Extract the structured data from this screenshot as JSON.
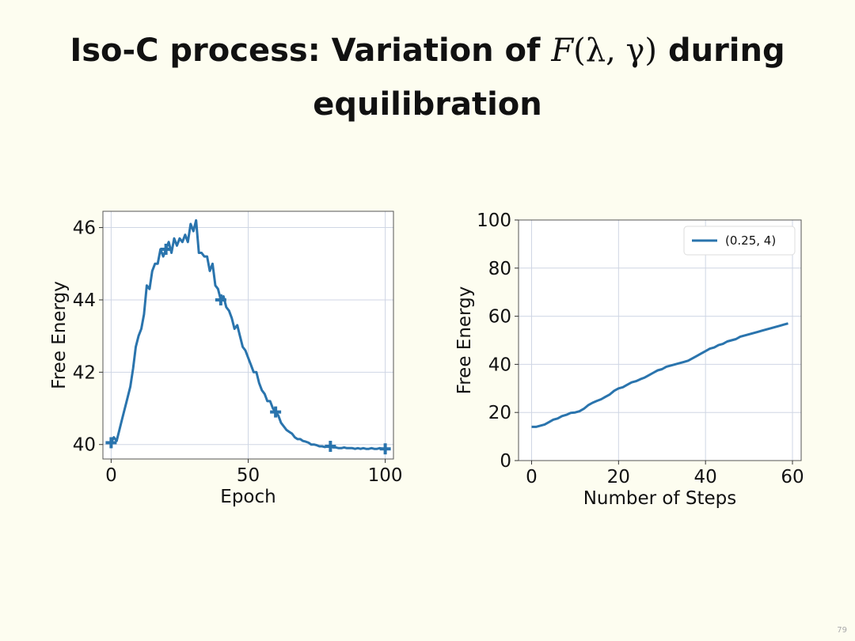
{
  "slide": {
    "title_before": "Iso-C process: Variation of ",
    "title_math_F": "F",
    "title_math_args": "(λ, γ)",
    "title_after": " during",
    "title_line2": "equilibration",
    "page_number": "79"
  },
  "colors": {
    "line": "#2a74ad",
    "grid": "#cfd6e4",
    "frame": "#555555",
    "background": "#fdfdf0"
  },
  "chart_data": [
    {
      "type": "line",
      "xlabel": "Epoch",
      "ylabel": "Free Energy",
      "xlim": [
        -3,
        103
      ],
      "ylim": [
        39.6,
        46.45
      ],
      "xticks": [
        0,
        50,
        100
      ],
      "yticks": [
        40,
        42,
        44,
        46
      ],
      "grid": true,
      "legend": null,
      "marker_x": [
        0,
        20,
        40,
        60,
        80,
        100
      ],
      "series": [
        {
          "x": [
            0,
            1,
            2,
            3,
            4,
            5,
            6,
            7,
            8,
            9,
            10,
            11,
            12,
            13,
            14,
            15,
            16,
            17,
            18,
            19,
            20,
            21,
            22,
            23,
            24,
            25,
            26,
            27,
            28,
            29,
            30,
            31,
            32,
            33,
            34,
            35,
            36,
            37,
            38,
            39,
            40,
            41,
            42,
            43,
            44,
            45,
            46,
            47,
            48,
            49,
            50,
            51,
            52,
            53,
            54,
            55,
            56,
            57,
            58,
            59,
            60,
            61,
            62,
            63,
            64,
            65,
            66,
            67,
            68,
            69,
            70,
            71,
            72,
            73,
            74,
            75,
            76,
            77,
            78,
            79,
            80,
            81,
            82,
            83,
            84,
            85,
            86,
            87,
            88,
            89,
            90,
            91,
            92,
            93,
            94,
            95,
            96,
            97,
            98,
            99,
            100
          ],
          "y": [
            40.05,
            40.2,
            40.1,
            40.4,
            40.7,
            41.0,
            41.3,
            41.6,
            42.1,
            42.7,
            43.0,
            43.2,
            43.6,
            44.4,
            44.3,
            44.8,
            45.0,
            45.0,
            45.4,
            45.2,
            45.4,
            45.6,
            45.3,
            45.7,
            45.5,
            45.7,
            45.6,
            45.8,
            45.6,
            46.1,
            45.9,
            46.2,
            45.3,
            45.3,
            45.2,
            45.2,
            44.8,
            45.0,
            44.4,
            44.3,
            44.0,
            44.1,
            43.8,
            43.7,
            43.5,
            43.2,
            43.3,
            43.0,
            42.7,
            42.6,
            42.4,
            42.2,
            42.0,
            42.0,
            41.7,
            41.5,
            41.4,
            41.2,
            41.2,
            41.0,
            40.9,
            40.8,
            40.6,
            40.5,
            40.4,
            40.35,
            40.3,
            40.2,
            40.15,
            40.15,
            40.1,
            40.08,
            40.05,
            40.0,
            40.0,
            39.98,
            39.95,
            39.95,
            39.93,
            39.95,
            39.95,
            39.92,
            39.92,
            39.9,
            39.9,
            39.92,
            39.9,
            39.9,
            39.9,
            39.88,
            39.9,
            39.88,
            39.9,
            39.88,
            39.88,
            39.9,
            39.88,
            39.88,
            39.9,
            39.88,
            39.88
          ]
        }
      ]
    },
    {
      "type": "line",
      "xlabel": "Number of Steps",
      "ylabel": "Free Energy",
      "xlim": [
        -3,
        62
      ],
      "ylim": [
        0,
        100
      ],
      "xticks": [
        0,
        20,
        40,
        60
      ],
      "yticks": [
        0,
        20,
        40,
        60,
        80,
        100
      ],
      "grid": true,
      "legend": "top-right",
      "series": [
        {
          "name": "(0.25, 4)",
          "x": [
            0,
            1,
            2,
            3,
            4,
            5,
            6,
            7,
            8,
            9,
            10,
            11,
            12,
            13,
            14,
            15,
            16,
            17,
            18,
            19,
            20,
            21,
            22,
            23,
            24,
            25,
            26,
            27,
            28,
            29,
            30,
            31,
            32,
            33,
            34,
            35,
            36,
            37,
            38,
            39,
            40,
            41,
            42,
            43,
            44,
            45,
            46,
            47,
            48,
            49,
            50,
            51,
            52,
            53,
            54,
            55,
            56,
            57,
            58,
            59
          ],
          "y": [
            14.0,
            14.0,
            14.5,
            15.0,
            16.0,
            17.0,
            17.5,
            18.5,
            19.0,
            19.8,
            20.0,
            20.5,
            21.5,
            23.0,
            24.0,
            24.8,
            25.5,
            26.5,
            27.5,
            29.0,
            30.0,
            30.5,
            31.5,
            32.5,
            33.0,
            33.8,
            34.5,
            35.5,
            36.5,
            37.5,
            38.0,
            39.0,
            39.5,
            40.0,
            40.5,
            41.0,
            41.5,
            42.5,
            43.5,
            44.5,
            45.5,
            46.5,
            47.0,
            48.0,
            48.5,
            49.5,
            50.0,
            50.5,
            51.5,
            52.0,
            52.5,
            53.0,
            53.5,
            54.0,
            54.5,
            55.0,
            55.5,
            56.0,
            56.5,
            57.0
          ]
        }
      ]
    }
  ]
}
